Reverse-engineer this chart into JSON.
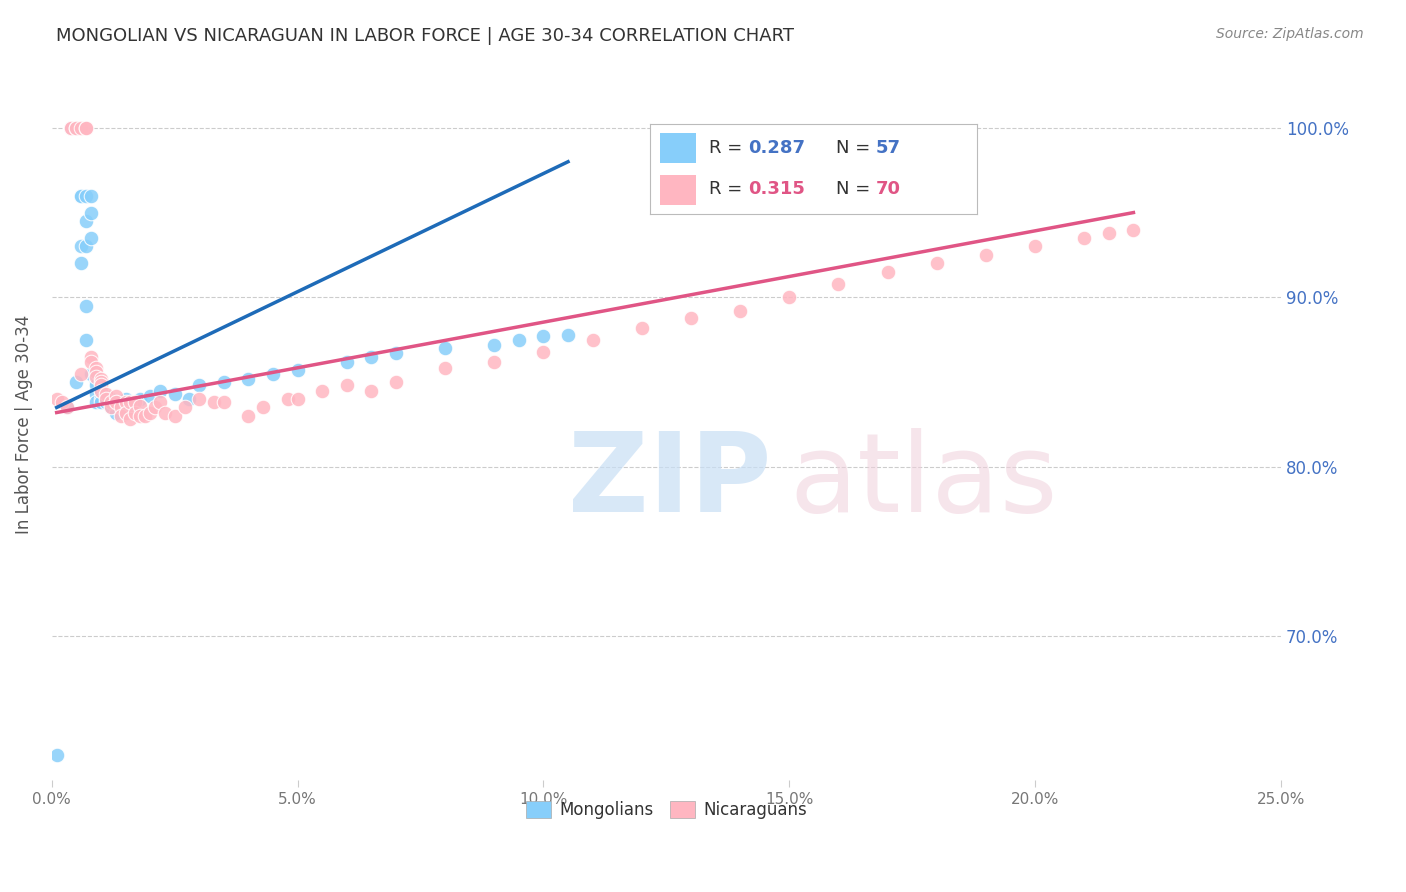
{
  "title": "MONGOLIAN VS NICARAGUAN IN LABOR FORCE | AGE 30-34 CORRELATION CHART",
  "source": "Source: ZipAtlas.com",
  "ylabel": "In Labor Force | Age 30-34",
  "ytick_labels": [
    "70.0%",
    "80.0%",
    "90.0%",
    "100.0%"
  ],
  "ytick_values": [
    0.7,
    0.8,
    0.9,
    1.0
  ],
  "xlim": [
    0.0,
    0.25
  ],
  "ylim": [
    0.615,
    1.035
  ],
  "legend_blue_r": "0.287",
  "legend_blue_n": "57",
  "legend_pink_r": "0.315",
  "legend_pink_n": "70",
  "blue_scatter_color": "#87CEFA",
  "pink_scatter_color": "#FFB6C1",
  "blue_line_color": "#1e6bb8",
  "pink_line_color": "#e05585",
  "text_blue": "#4472c4",
  "text_pink": "#e05585",
  "background_color": "#ffffff",
  "grid_color": "#cccccc",
  "mongolian_x": [
    0.001,
    0.003,
    0.004,
    0.004,
    0.004,
    0.005,
    0.005,
    0.005,
    0.006,
    0.006,
    0.006,
    0.006,
    0.007,
    0.007,
    0.007,
    0.007,
    0.007,
    0.008,
    0.008,
    0.008,
    0.008,
    0.009,
    0.009,
    0.009,
    0.009,
    0.01,
    0.01,
    0.01,
    0.011,
    0.011,
    0.012,
    0.012,
    0.013,
    0.013,
    0.014,
    0.015,
    0.015,
    0.016,
    0.017,
    0.018,
    0.02,
    0.022,
    0.025,
    0.028,
    0.03,
    0.035,
    0.04,
    0.045,
    0.05,
    0.06,
    0.065,
    0.07,
    0.08,
    0.09,
    0.095,
    0.1,
    0.105
  ],
  "mongolian_y": [
    0.63,
    0.835,
    1.0,
    1.0,
    1.0,
    1.0,
    1.0,
    0.85,
    0.96,
    0.96,
    0.93,
    0.92,
    0.96,
    0.945,
    0.93,
    0.895,
    0.875,
    0.96,
    0.95,
    0.935,
    0.855,
    0.85,
    0.848,
    0.843,
    0.838,
    0.845,
    0.84,
    0.838,
    0.842,
    0.838,
    0.84,
    0.835,
    0.838,
    0.832,
    0.837,
    0.84,
    0.835,
    0.838,
    0.837,
    0.84,
    0.842,
    0.845,
    0.843,
    0.84,
    0.848,
    0.85,
    0.852,
    0.855,
    0.857,
    0.862,
    0.865,
    0.867,
    0.87,
    0.872,
    0.875,
    0.877,
    0.878
  ],
  "nicaraguan_x": [
    0.001,
    0.002,
    0.003,
    0.004,
    0.004,
    0.005,
    0.005,
    0.006,
    0.006,
    0.007,
    0.007,
    0.008,
    0.008,
    0.009,
    0.009,
    0.009,
    0.01,
    0.01,
    0.01,
    0.01,
    0.011,
    0.011,
    0.012,
    0.012,
    0.013,
    0.013,
    0.014,
    0.014,
    0.015,
    0.015,
    0.016,
    0.016,
    0.017,
    0.017,
    0.018,
    0.018,
    0.019,
    0.02,
    0.021,
    0.022,
    0.023,
    0.025,
    0.027,
    0.03,
    0.033,
    0.035,
    0.04,
    0.043,
    0.048,
    0.05,
    0.055,
    0.06,
    0.065,
    0.07,
    0.08,
    0.09,
    0.1,
    0.11,
    0.12,
    0.13,
    0.14,
    0.15,
    0.16,
    0.17,
    0.18,
    0.19,
    0.2,
    0.21,
    0.215,
    0.22
  ],
  "nicaraguan_y": [
    0.84,
    0.838,
    0.835,
    1.0,
    1.0,
    1.0,
    1.0,
    1.0,
    0.855,
    1.0,
    1.0,
    0.865,
    0.862,
    0.858,
    0.856,
    0.853,
    0.852,
    0.85,
    0.848,
    0.845,
    0.843,
    0.84,
    0.838,
    0.835,
    0.842,
    0.838,
    0.835,
    0.83,
    0.838,
    0.832,
    0.828,
    0.838,
    0.838,
    0.832,
    0.836,
    0.83,
    0.83,
    0.832,
    0.835,
    0.838,
    0.832,
    0.83,
    0.835,
    0.84,
    0.838,
    0.838,
    0.83,
    0.835,
    0.84,
    0.84,
    0.845,
    0.848,
    0.845,
    0.85,
    0.858,
    0.862,
    0.868,
    0.875,
    0.882,
    0.888,
    0.892,
    0.9,
    0.908,
    0.915,
    0.92,
    0.925,
    0.93,
    0.935,
    0.938,
    0.94
  ],
  "blue_line_x": [
    0.001,
    0.105
  ],
  "blue_line_y": [
    0.835,
    0.98
  ],
  "pink_line_x": [
    0.001,
    0.22
  ],
  "pink_line_y": [
    0.832,
    0.95
  ]
}
